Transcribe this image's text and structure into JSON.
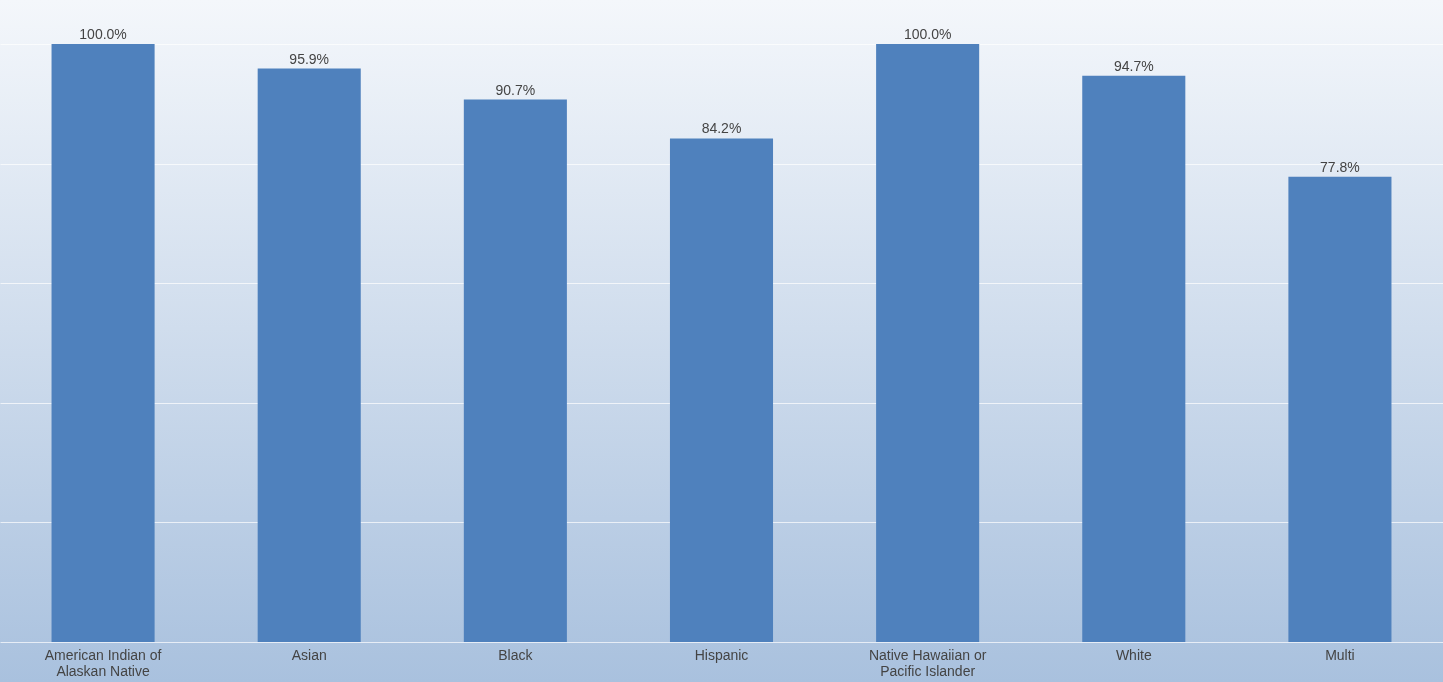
{
  "chart_data": {
    "type": "bar",
    "categories": [
      "American Indian of Alaskan Native",
      "Asian",
      "Black",
      "Hispanic",
      "Native Hawaiian or Pacific Islander",
      "White",
      "Multi"
    ],
    "values": [
      100.0,
      95.9,
      90.7,
      84.2,
      100.0,
      94.7,
      77.8
    ],
    "value_labels": [
      "100.0%",
      "95.9%",
      "90.7%",
      "84.2%",
      "100.0%",
      "94.7%",
      "77.8%"
    ],
    "color": "#4f81bd",
    "ylim": [
      0,
      100
    ],
    "yticks": [
      {
        "value": 0,
        "label": null
      },
      {
        "value": 20,
        "label": null
      },
      {
        "value": 40,
        "label": null
      },
      {
        "value": 60,
        "label": null
      },
      {
        "value": 80,
        "label": null
      },
      {
        "value": 100,
        "label": null
      }
    ],
    "grid": "y",
    "tick_labels": "x"
  }
}
